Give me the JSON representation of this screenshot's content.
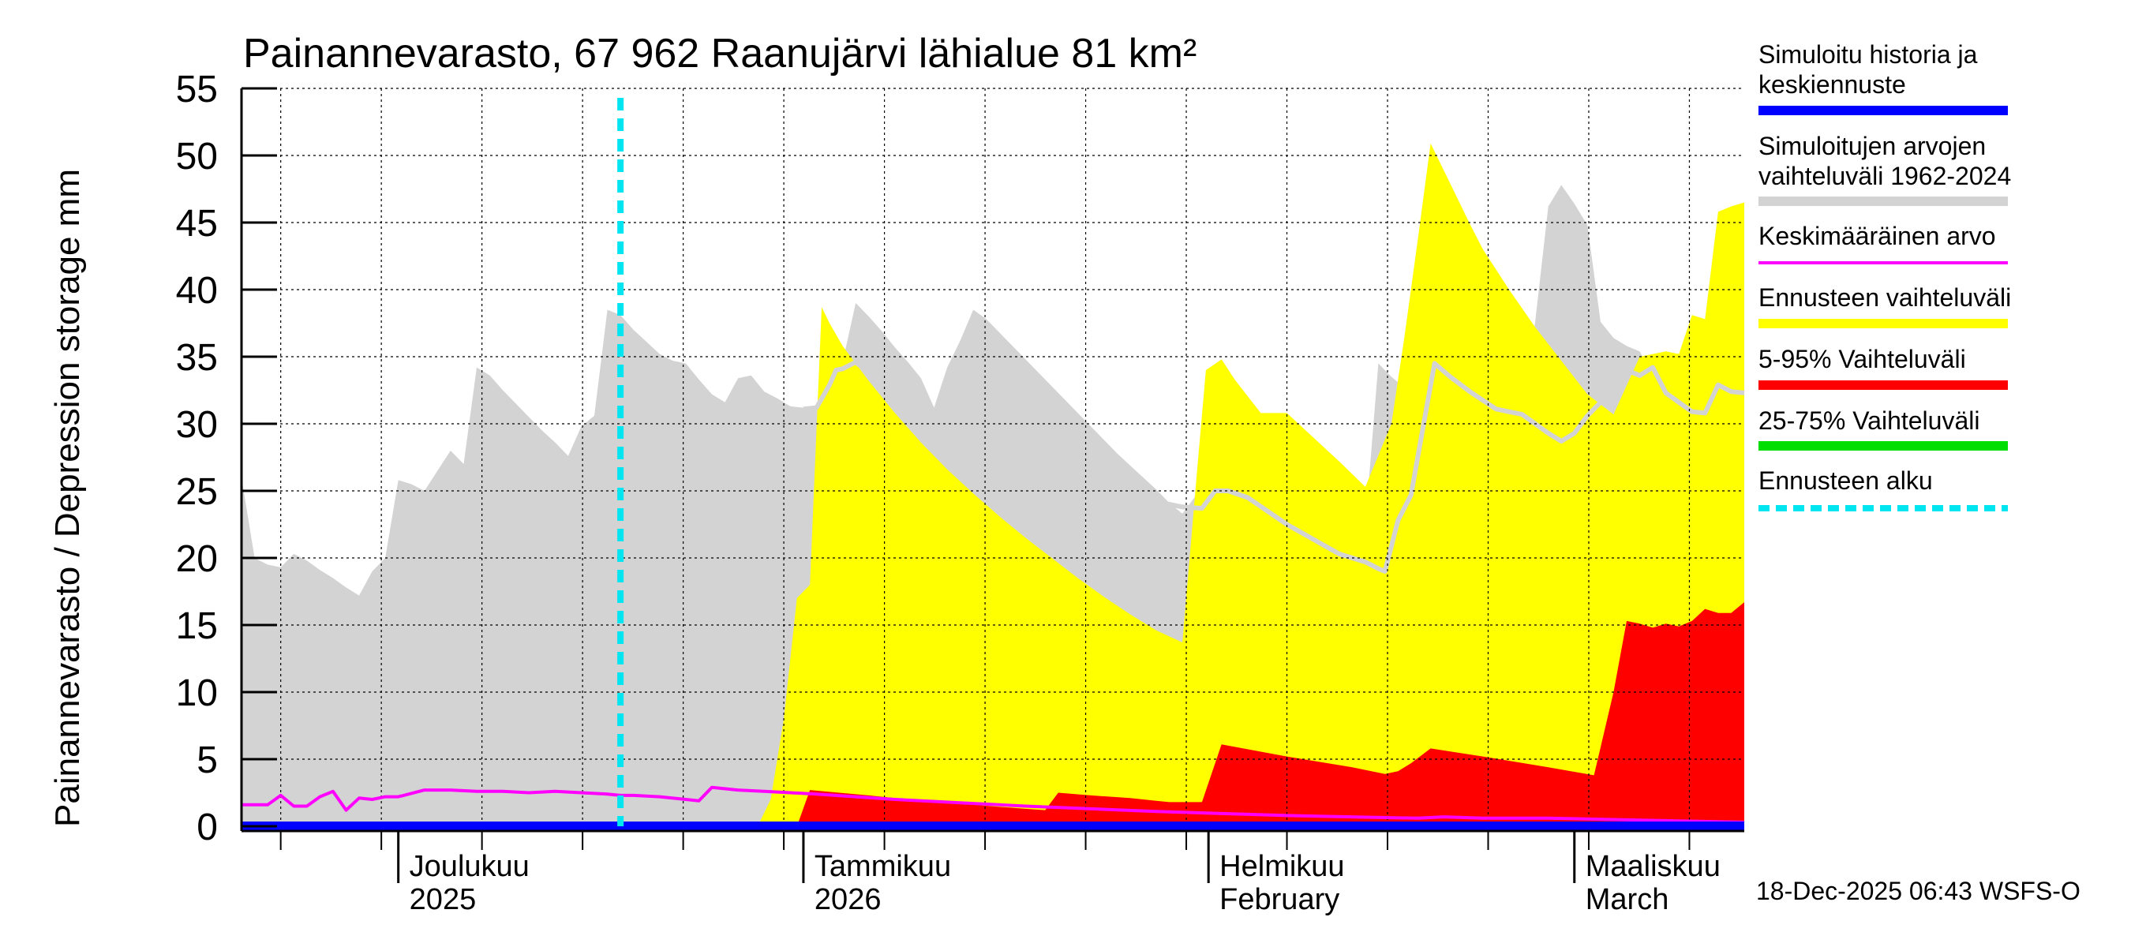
{
  "colors": {
    "history": "#0000ff",
    "sim_range": "#d3d3d3",
    "mean": "#ff00ff",
    "forecast_range": "#ffff00",
    "p5_95": "#ff0000",
    "p25_75": "#00dd00",
    "forecast_start": "#00e5f0",
    "grid": "#000000"
  },
  "chart_data": {
    "type": "area",
    "title": "Painannevarasto, 67 962 Raanujärvi lähialue 81 km²",
    "ylabel": "Painannevarasto / Depression storage    mm",
    "ylim": [
      0,
      55
    ],
    "yticks": [
      0,
      5,
      10,
      15,
      20,
      25,
      30,
      35,
      40,
      45,
      50,
      55
    ],
    "xlim": [
      0,
      115
    ],
    "x_unit": "days since 2025-11-19",
    "month_ticks": [
      {
        "x": 12,
        "line1": "Joulukuu",
        "line2": "2025"
      },
      {
        "x": 43,
        "line1": "Tammikuu",
        "line2": "2026"
      },
      {
        "x": 74,
        "line1": "Helmikuu",
        "line2": "February"
      },
      {
        "x": 102,
        "line1": "Maaliskuu",
        "line2": "March"
      }
    ],
    "forecast_start_x": 29,
    "series": [
      {
        "name": "Simuloitujen arvojen vaihteluväli 1962-2024",
        "kind": "band",
        "x": [
          0,
          1,
          2,
          3,
          4,
          5,
          6,
          7,
          8,
          9,
          10,
          11,
          12,
          13,
          14,
          15,
          16,
          17,
          18,
          19,
          20,
          21,
          22,
          23,
          24,
          25,
          26,
          27,
          28,
          29,
          30,
          31,
          32,
          33,
          34,
          35,
          36,
          37,
          38,
          39,
          40,
          41,
          42,
          43,
          44,
          45,
          46,
          47,
          48,
          49,
          50,
          51,
          52,
          53,
          54,
          55,
          56,
          57,
          58,
          59,
          60,
          61,
          62,
          63,
          64,
          65,
          66,
          67,
          68,
          69,
          70,
          71,
          72,
          73,
          74,
          75,
          76,
          77,
          78,
          79,
          80,
          81,
          82,
          83,
          84,
          85,
          86,
          87,
          88,
          89,
          90,
          91,
          92,
          93,
          94,
          95,
          96,
          97,
          98,
          99,
          100,
          101,
          102,
          103,
          104,
          105,
          106,
          107,
          108,
          109,
          110,
          111,
          112,
          113,
          114,
          115
        ],
        "upper": [
          26,
          20,
          19.5,
          19.3,
          20.3,
          19.8,
          19.1,
          18.5,
          17.8,
          17.2,
          19,
          20,
          25.8,
          25.5,
          25,
          26.5,
          28,
          27,
          34.2,
          33.6,
          32.5,
          31.5,
          30.5,
          29.5,
          28.6,
          27.6,
          29.8,
          30.6,
          38.5,
          38.1,
          37,
          36.1,
          35.2,
          34.7,
          34.5,
          33.3,
          32.2,
          31.6,
          33.4,
          33.6,
          32.4,
          31.9,
          31.3,
          31.2,
          31.1,
          34.1,
          34.6,
          39,
          38,
          36.9,
          35.7,
          34.6,
          33.4,
          31.2,
          34.2,
          36.2,
          38.5,
          37.8,
          36.8,
          35.8,
          34.8,
          33.8,
          32.8,
          31.8,
          30.8,
          29.8,
          28.8,
          27.8,
          26.9,
          26,
          25.1,
          24.1,
          23.3,
          24.6,
          25,
          24.7,
          24.2,
          23.5,
          22.8,
          22.2,
          21.5,
          20.8,
          20.3,
          20.1,
          19.2,
          18.7,
          22.5,
          34.5,
          33.5,
          32.7,
          31.9,
          31,
          30.6,
          30.2,
          29.6,
          29,
          28.7,
          29.5,
          30.8,
          37.6,
          46.2,
          47.8,
          46.4,
          44.8,
          37.6,
          36.4,
          35.8,
          35.4,
          33.6,
          32.4,
          31.3,
          30.8,
          30.2,
          32.5,
          33,
          32.3
        ],
        "lower": [
          0,
          0,
          0,
          0,
          0,
          0,
          0,
          0,
          0,
          0,
          0,
          0,
          0,
          0,
          0,
          0,
          0,
          0,
          0,
          0,
          0,
          0,
          0,
          0,
          0,
          0,
          0,
          0,
          0,
          0,
          0,
          0,
          0,
          0,
          0,
          0,
          0,
          0,
          0,
          0,
          0,
          0,
          0,
          0,
          0,
          0,
          0,
          0,
          0,
          0,
          0,
          0,
          0,
          0,
          0,
          0,
          0,
          0,
          0,
          0,
          0,
          0,
          0,
          0,
          0,
          0,
          0,
          0,
          0,
          0,
          0,
          0,
          0,
          0,
          0,
          0,
          0,
          0,
          0,
          0,
          0,
          0,
          0,
          0,
          0,
          0,
          0,
          0,
          0,
          0,
          0,
          0,
          0,
          0,
          0,
          0,
          0,
          0,
          0,
          0,
          0,
          0,
          0,
          0,
          0,
          0,
          0,
          0,
          0,
          0,
          0,
          0,
          0,
          0,
          0,
          0
        ]
      },
      {
        "name": "Ennusteen vaihteluväli",
        "kind": "band",
        "x": [
          39.5,
          40.5,
          41.5,
          42.5,
          43.5,
          44.4,
          45,
          46,
          48,
          50,
          52,
          54,
          56,
          58,
          60,
          62,
          64,
          66,
          68,
          70,
          72,
          73.2,
          73.8,
          74.4,
          75,
          76,
          78,
          80,
          82,
          84,
          86,
          88,
          89,
          90,
          91,
          92,
          93,
          94,
          95,
          97,
          99,
          101,
          103,
          105,
          107,
          109,
          110,
          111,
          112,
          113,
          114,
          115
        ],
        "upper": [
          0,
          2,
          8,
          17,
          18,
          38.7,
          37.5,
          35.8,
          33.2,
          30.8,
          28.6,
          26.6,
          24.8,
          23.1,
          21.5,
          20,
          18.5,
          17.1,
          15.8,
          14.6,
          13.7,
          27.3,
          34,
          34.4,
          34.8,
          33.3,
          30.8,
          30.8,
          29,
          27.2,
          25.3,
          30,
          36.5,
          43.6,
          50.9,
          48.9,
          46.9,
          44.9,
          43,
          40,
          37.2,
          34.7,
          32.2,
          30.7,
          35,
          35.4,
          35.2,
          38.1,
          37.8,
          45.8,
          46.2,
          46.5
        ],
        "lower": [
          0,
          0,
          0,
          0,
          0,
          0,
          0,
          0,
          0,
          0,
          0,
          0,
          0,
          0,
          0,
          0,
          0,
          0,
          0,
          0,
          0,
          0,
          0,
          0,
          0,
          0,
          0,
          0,
          0,
          0,
          0,
          0,
          0,
          0,
          0,
          0,
          0,
          0,
          0,
          0,
          0,
          0,
          0,
          0,
          0,
          0,
          0,
          0,
          0,
          0,
          0,
          0
        ]
      },
      {
        "name": "5-95% Vaihteluväli",
        "kind": "band",
        "x": [
          42.5,
          43.5,
          48,
          52,
          56,
          60,
          61.5,
          62.5,
          65,
          68,
          70,
          71,
          73.5,
          75,
          80,
          85,
          87.5,
          88.5,
          89.5,
          91,
          95,
          100,
          103.5,
          105,
          106,
          107,
          108,
          109,
          110,
          111,
          112,
          113,
          114,
          115
        ],
        "upper": [
          0,
          2.7,
          2.3,
          1.9,
          1.6,
          1.3,
          1.2,
          2.5,
          2.3,
          2.1,
          1.9,
          1.8,
          1.8,
          6.1,
          5.2,
          4.4,
          3.9,
          4.1,
          4.7,
          5.8,
          5.2,
          4.4,
          3.8,
          10,
          15.3,
          15.1,
          14.8,
          15.1,
          14.9,
          15.3,
          16.2,
          15.9,
          15.9,
          16.7
        ],
        "lower": [
          0,
          0,
          0,
          0,
          0,
          0,
          0,
          0,
          0,
          0,
          0,
          0,
          0,
          0,
          0,
          0,
          0,
          0,
          0,
          0,
          0,
          0,
          0,
          0,
          0,
          0,
          0,
          0,
          0,
          0,
          0,
          0,
          0,
          0
        ]
      },
      {
        "name": "Keskimääräinen arvo",
        "kind": "line",
        "x": [
          0,
          1,
          2,
          3,
          4,
          5,
          6,
          7,
          8,
          9,
          10,
          11,
          12,
          14,
          16,
          18,
          20,
          22,
          24,
          26,
          28,
          29,
          30,
          32,
          34,
          35,
          36,
          38,
          40,
          42,
          44,
          50,
          60,
          70,
          80,
          90,
          92,
          95,
          100,
          105,
          110,
          115
        ],
        "y": [
          1.6,
          1.6,
          1.6,
          2.3,
          1.5,
          1.5,
          2.2,
          2.6,
          1.2,
          2.1,
          2.0,
          2.2,
          2.2,
          2.7,
          2.7,
          2.6,
          2.6,
          2.5,
          2.6,
          2.5,
          2.4,
          2.3,
          2.3,
          2.2,
          2.0,
          1.9,
          2.9,
          2.7,
          2.6,
          2.5,
          2.4,
          2.0,
          1.5,
          1.1,
          0.8,
          0.6,
          0.7,
          0.6,
          0.6,
          0.5,
          0.4,
          0.3
        ]
      },
      {
        "name": "Simuloitu historia ja keskiennuste",
        "kind": "line",
        "x": [
          0,
          115
        ],
        "y": [
          0,
          0
        ]
      },
      {
        "name": "25-75% Vaihteluväli",
        "kind": "line",
        "x": [
          0,
          115
        ],
        "y": [
          0,
          0
        ]
      }
    ],
    "median_line": {
      "name": "Ennusteen mediaani (harmaa viiva)",
      "x": [
        43,
        44,
        45,
        45.5,
        46,
        47,
        48,
        50,
        52,
        54,
        56,
        58,
        60,
        62,
        64,
        66,
        68,
        70,
        72,
        73.5,
        74.5,
        75.5,
        77,
        80,
        82,
        84,
        86,
        87,
        87.5,
        88.5,
        89.5,
        90.5,
        91.3,
        92.5,
        94,
        96,
        98,
        99,
        100,
        101,
        102,
        103,
        104,
        105,
        106,
        107,
        108,
        109,
        110,
        111,
        112,
        113,
        114,
        115
      ],
      "y": [
        31.1,
        31.2,
        32.9,
        34,
        34.1,
        34.6,
        33.8,
        32.1,
        30.5,
        29.4,
        28.6,
        27.8,
        27,
        26.3,
        25.7,
        25.1,
        24.6,
        24.2,
        23.8,
        23.7,
        25,
        25,
        24.5,
        22.5,
        21.4,
        20.3,
        19.7,
        19.2,
        19,
        22.8,
        24.7,
        30.2,
        34.5,
        33.5,
        32.4,
        31.1,
        30.7,
        30,
        29.3,
        28.7,
        29.3,
        30.6,
        31.6,
        32.8,
        34,
        33.6,
        34.2,
        32.3,
        31.6,
        30.9,
        30.8,
        32.9,
        32.4,
        32.3
      ]
    },
    "legend": [
      {
        "key": "history",
        "text": [
          "Simuloitu historia ja",
          "keskiennuste"
        ],
        "style": "thick"
      },
      {
        "key": "sim_range",
        "text": [
          "Simuloitujen arvojen",
          "vaihteluväli 1962-2024"
        ],
        "style": "thick"
      },
      {
        "key": "mean",
        "text": [
          "Keskimääräinen arvo"
        ],
        "style": "thin"
      },
      {
        "key": "forecast_range",
        "text": [
          "Ennusteen vaihteluväli"
        ],
        "style": "thick"
      },
      {
        "key": "p5_95",
        "text": [
          "5-95% Vaihteluväli"
        ],
        "style": "thick"
      },
      {
        "key": "p25_75",
        "text": [
          "25-75% Vaihteluväli"
        ],
        "style": "thick"
      },
      {
        "key": "forecast_start",
        "text": [
          "Ennusteen alku"
        ],
        "style": "dashed"
      }
    ]
  },
  "footer": {
    "timestamp": "18-Dec-2025 06:43 WSFS-O"
  }
}
